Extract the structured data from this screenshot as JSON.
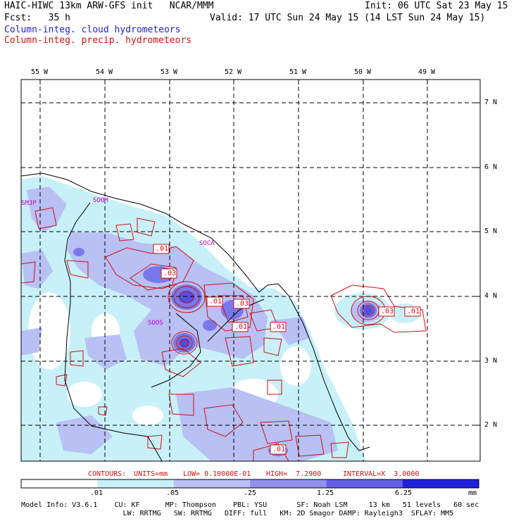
{
  "header": {
    "line1_left": "HAIC-HIWC 13km ARW-GFS init   NCAR/MMM",
    "line1_right": "Init: 06 UTC Sat 23 May 15",
    "line2_left": "Fcst:   35 h",
    "line2_right": "Valid: 17 UTC Sun 24 May 15 (14 LST Sun 24 May 15)",
    "legend_cloud": "Column-integ. cloud hydrometeors",
    "legend_precip": "Column-integ. precip. hydrometeors"
  },
  "lon_labels": [
    "55 W",
    "54 W",
    "53 W",
    "52 W",
    "51 W",
    "50 W",
    "49 W"
  ],
  "lat_labels": [
    "7 N",
    "6 N",
    "5 N",
    "4 N",
    "3 N",
    "2 N"
  ],
  "stations": [
    "SMJP",
    "SOOM",
    "SOCA",
    "SOOS"
  ],
  "contour_labels": [
    ".01",
    ".03",
    ".01",
    ".03",
    ".01",
    ".01",
    ".01",
    ".03",
    ".01",
    ".01"
  ],
  "contour_info": {
    "contours": "CONTOURS:",
    "units": "UNITS=mm",
    "low": "LOW= 0.10000E-01",
    "high": "HIGH=  7.2900",
    "interval": "INTERVAL=X  3.0000"
  },
  "colorbar": {
    "ticks": [
      ".01",
      ".05",
      ".25",
      "1.25",
      "6.25"
    ],
    "unit": "mm",
    "colors": [
      "#ffffff",
      "#c8f0f8",
      "#b8c0f4",
      "#9090ee",
      "#6060e8",
      "#2020e0"
    ]
  },
  "model_info": {
    "line1": "Model Info: V3.6.1    CU: KF      MP: Thompson    PBL: YSU       SF: Noah LSM     13 km   51 levels   60 sec",
    "line2": "                        LW: RRTMG   SW: RRTMG   DIFF: full   KM: 2D Smagor DAMP: Rayleigh3  SFLAY: MM5"
  },
  "colors": {
    "cloud_legend": "#2020d0",
    "precip_contour": "#d01010",
    "station_label": "#c000c0",
    "fill_light": "#c8f0f8",
    "fill_mid": "#b8c0f4",
    "fill_dark": "#7070e8"
  }
}
